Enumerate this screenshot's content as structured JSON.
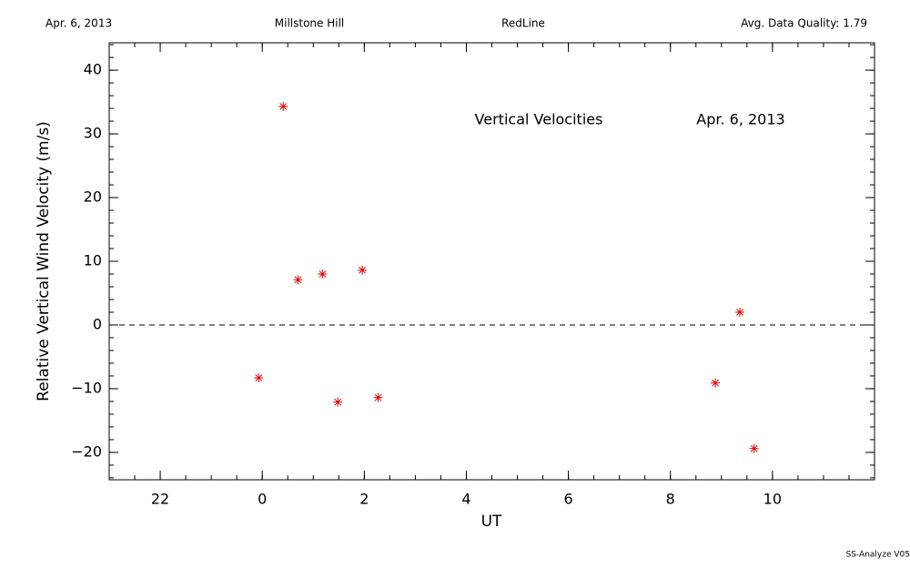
{
  "header": {
    "left": "Apr. 6, 2013",
    "center_left": "Millstone Hill",
    "center_right": "RedLine",
    "right": "Avg. Data Quality: 1.79"
  },
  "footer": "SS-Analyze V05",
  "chart_data": {
    "type": "scatter",
    "annotations": [
      "Vertical Velocities",
      "Apr. 6, 2013"
    ],
    "xlabel": "UT",
    "ylabel": "Relative Vertical Wind Velocity (m/s)",
    "x": [
      23.93,
      24.41,
      24.7,
      25.18,
      25.48,
      25.96,
      26.27,
      32.88,
      33.36,
      33.64
    ],
    "values": [
      -8.3,
      34.3,
      7.1,
      8.0,
      -12.1,
      8.6,
      -11.4,
      -9.1,
      2.0,
      -19.4
    ],
    "color": "#e00000",
    "marker": "asterisk",
    "xlim": [
      21,
      36
    ],
    "xticks": [
      22,
      {
        "value": 24,
        "label": "0"
      },
      {
        "value": 26,
        "label": "2"
      },
      {
        "value": 28,
        "label": "4"
      },
      {
        "value": 30,
        "label": "6"
      },
      {
        "value": 32,
        "label": "8"
      },
      {
        "value": 34,
        "label": "10"
      }
    ],
    "ylim": [
      -24.3,
      44.3
    ],
    "yticks": [
      {
        "value": -20,
        "label": "−20"
      },
      {
        "value": -10,
        "label": "−10"
      },
      0,
      10,
      20,
      30,
      40
    ],
    "hline": 0
  }
}
